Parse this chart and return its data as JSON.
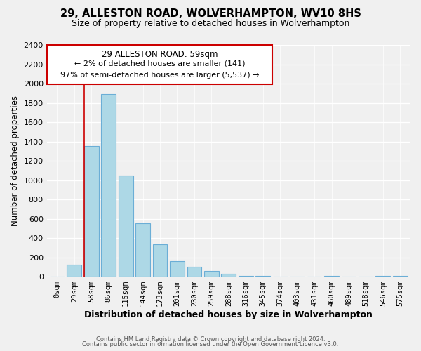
{
  "title": "29, ALLESTON ROAD, WOLVERHAMPTON, WV10 8HS",
  "subtitle": "Size of property relative to detached houses in Wolverhampton",
  "xlabel": "Distribution of detached houses by size in Wolverhampton",
  "ylabel": "Number of detached properties",
  "bar_labels": [
    "0sqm",
    "29sqm",
    "58sqm",
    "86sqm",
    "115sqm",
    "144sqm",
    "173sqm",
    "201sqm",
    "230sqm",
    "259sqm",
    "288sqm",
    "316sqm",
    "345sqm",
    "374sqm",
    "403sqm",
    "431sqm",
    "460sqm",
    "489sqm",
    "518sqm",
    "546sqm",
    "575sqm"
  ],
  "bar_values": [
    0,
    125,
    1350,
    1890,
    1050,
    550,
    335,
    160,
    105,
    60,
    30,
    10,
    5,
    0,
    0,
    0,
    10,
    0,
    0,
    5,
    5
  ],
  "bar_color": "#add8e6",
  "bar_edge_color": "#6baed6",
  "vline_x": 2,
  "vline_color": "#cc0000",
  "annotation_title": "29 ALLESTON ROAD: 59sqm",
  "annotation_line1": "← 2% of detached houses are smaller (141)",
  "annotation_line2": "97% of semi-detached houses are larger (5,537) →",
  "annotation_box_color": "#ffffff",
  "annotation_box_edge": "#cc0000",
  "ylim": [
    0,
    2400
  ],
  "yticks": [
    0,
    200,
    400,
    600,
    800,
    1000,
    1200,
    1400,
    1600,
    1800,
    2000,
    2200,
    2400
  ],
  "footer1": "Contains HM Land Registry data © Crown copyright and database right 2024.",
  "footer2": "Contains public sector information licensed under the Open Government Licence v3.0.",
  "bg_color": "#f0f0f0"
}
